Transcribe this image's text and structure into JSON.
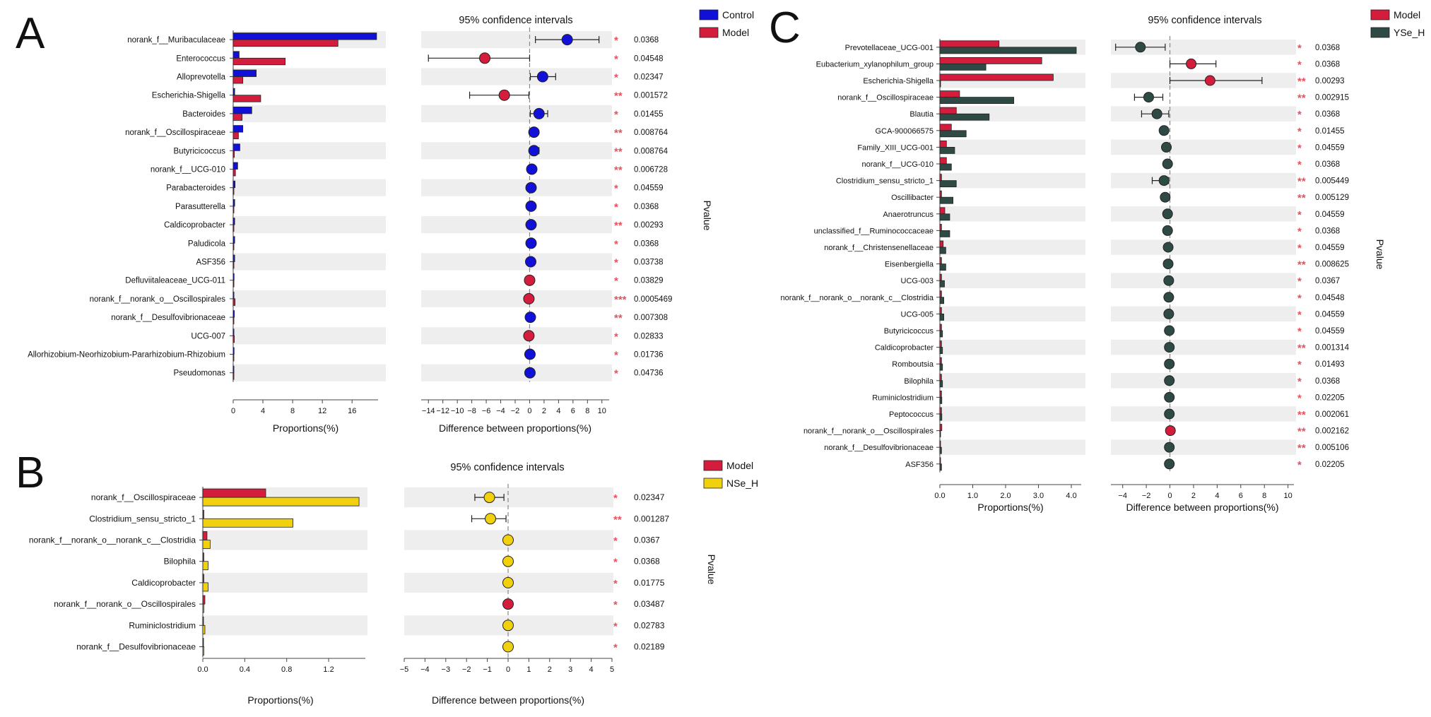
{
  "colors": {
    "control": "#1010d8",
    "model": "#d41c3c",
    "nse_h": "#f1d10e",
    "yse_h": "#2f4a44",
    "star": "#e8505b",
    "stripe": "#eeeeee",
    "bar_edge": "#222222"
  },
  "chart_data": [
    {
      "panel": "A",
      "type": "bar",
      "title": "95% confidence intervals",
      "xlabel_bar": "Proportions(%)",
      "xlabel_ci": "Difference between proportions(%)",
      "ylabel_right": "Pvalue",
      "legend": [
        "Control",
        "Model"
      ],
      "bar_xlim": [
        0,
        19.5
      ],
      "bar_ticks": [
        "0",
        "4",
        "8",
        "12",
        "16"
      ],
      "ci_xlim": [
        -15,
        11
      ],
      "ci_ticks": [
        "−14",
        "−12",
        "−10",
        "−8",
        "−6",
        "−4",
        "−2",
        "0",
        "2",
        "4",
        "6",
        "8",
        "10"
      ],
      "categories": [
        "norank_f__Muribaculaceae",
        "Enterococcus",
        "Alloprevotella",
        "Escherichia-Shigella",
        "Bacteroides",
        "norank_f__Oscillospiraceae",
        "Butyricicoccus",
        "norank_f__UCG-010",
        "Parabacteroides",
        "Parasutterella",
        "Caldicoprobacter",
        "Paludicola",
        "ASF356",
        "Defluviitaleaceae_UCG-011",
        "norank_f__norank_o__Oscillospirales",
        "norank_f__Desulfovibrionaceae",
        "UCG-007",
        "Allorhizobium-Neorhizobium-Pararhizobium-Rhizobium",
        "Pseudomonas"
      ],
      "series": [
        {
          "name": "Control",
          "values": [
            19.3,
            0.8,
            3.1,
            0.2,
            2.5,
            1.3,
            0.9,
            0.6,
            0.25,
            0.2,
            0.2,
            0.2,
            0.2,
            0.12,
            0.1,
            0.15,
            0.1,
            0.12,
            0.1
          ]
        },
        {
          "name": "Model",
          "values": [
            14.1,
            7.0,
            1.3,
            3.7,
            1.2,
            0.7,
            0.15,
            0.3,
            0.05,
            0.05,
            0.05,
            0.05,
            0.05,
            0.1,
            0.25,
            0.05,
            0.15,
            0.05,
            0.05
          ]
        }
      ],
      "diff": [
        5.2,
        -6.2,
        1.8,
        -3.5,
        1.3,
        0.6,
        0.6,
        0.3,
        0.2,
        0.2,
        0.2,
        0.2,
        0.15,
        0.0,
        -0.1,
        0.1,
        -0.1,
        0.05,
        0.05
      ],
      "ci_low": [
        0.8,
        -14.0,
        0.1,
        -8.3,
        0.1,
        0.3,
        0.1,
        0.1,
        0.05,
        0.05,
        0.05,
        0.05,
        0.05,
        -0.1,
        -0.2,
        0.05,
        -0.2,
        0.0,
        0.0
      ],
      "ci_high": [
        9.6,
        0.0,
        3.6,
        -0.1,
        2.5,
        0.9,
        1.3,
        0.5,
        0.35,
        0.35,
        0.35,
        0.35,
        0.25,
        0.1,
        0.0,
        0.15,
        0.0,
        0.1,
        0.1
      ],
      "point_group": [
        "Control",
        "Model",
        "Control",
        "Model",
        "Control",
        "Control",
        "Control",
        "Control",
        "Control",
        "Control",
        "Control",
        "Control",
        "Control",
        "Model",
        "Model",
        "Control",
        "Model",
        "Control",
        "Control"
      ],
      "stars": [
        "*",
        "*",
        "*",
        "**",
        "*",
        "**",
        "**",
        "**",
        "*",
        "*",
        "**",
        "*",
        "*",
        "*",
        "***",
        "**",
        "*",
        "*",
        "*"
      ],
      "pvalues": [
        "0.0368",
        "0.04548",
        "0.02347",
        "0.001572",
        "0.01455",
        "0.008764",
        "0.008764",
        "0.006728",
        "0.04559",
        "0.0368",
        "0.00293",
        "0.0368",
        "0.03738",
        "0.03829",
        "0.0005469",
        "0.007308",
        "0.02833",
        "0.01736",
        "0.04736"
      ]
    },
    {
      "panel": "B",
      "type": "bar",
      "title": "95% confidence intervals",
      "xlabel_bar": "Proportions(%)",
      "xlabel_ci": "Difference between proportions(%)",
      "ylabel_right": "Pvalue",
      "legend": [
        "Model",
        "NSe_H"
      ],
      "bar_xlim": [
        0,
        1.55
      ],
      "bar_ticks": [
        "0.0",
        "0.4",
        "0.8",
        "1.2"
      ],
      "ci_xlim": [
        -5,
        5
      ],
      "ci_ticks": [
        "−5",
        "−4",
        "−3",
        "−2",
        "−1",
        "0",
        "1",
        "2",
        "3",
        "4",
        "5"
      ],
      "categories": [
        "norank_f__Oscillospiraceae",
        "Clostridium_sensu_stricto_1",
        "norank_f__norank_o__norank_c__Clostridia",
        "Bilophila",
        "Caldicoprobacter",
        "norank_f__norank_o__Oscillospirales",
        "Ruminiclostridium",
        "norank_f__Desulfovibrionaceae"
      ],
      "series": [
        {
          "name": "Model",
          "values": [
            0.6,
            0.01,
            0.04,
            0.01,
            0.01,
            0.02,
            0.005,
            0.005
          ]
        },
        {
          "name": "NSe_H",
          "values": [
            1.49,
            0.86,
            0.07,
            0.05,
            0.05,
            0.01,
            0.02,
            0.01
          ]
        }
      ],
      "diff": [
        -0.9,
        -0.85,
        0.0,
        0.0,
        0.0,
        0.0,
        0.0,
        0.0
      ],
      "ci_low": [
        -1.6,
        -1.75,
        -0.1,
        -0.1,
        -0.1,
        -0.1,
        -0.1,
        -0.1
      ],
      "ci_high": [
        -0.2,
        -0.1,
        0.1,
        0.1,
        0.1,
        0.1,
        0.1,
        0.1
      ],
      "point_group": [
        "NSe_H",
        "NSe_H",
        "NSe_H",
        "NSe_H",
        "NSe_H",
        "Model",
        "NSe_H",
        "NSe_H"
      ],
      "stars": [
        "*",
        "**",
        "*",
        "*",
        "*",
        "*",
        "*",
        "*"
      ],
      "pvalues": [
        "0.02347",
        "0.001287",
        "0.0367",
        "0.0368",
        "0.01775",
        "0.03487",
        "0.02783",
        "0.02189"
      ]
    },
    {
      "panel": "C",
      "type": "bar",
      "title": "95% confidence intervals",
      "xlabel_bar": "Proportions(%)",
      "xlabel_ci": "Difference between proportions(%)",
      "ylabel_right": "Pvalue",
      "legend": [
        "Model",
        "YSe_H"
      ],
      "bar_xlim": [
        0,
        4.3
      ],
      "bar_ticks": [
        "0.0",
        "1.0",
        "2.0",
        "3.0",
        "4.0"
      ],
      "ci_xlim": [
        -5,
        10.5
      ],
      "ci_ticks": [
        "−4",
        "−2",
        "0",
        "2",
        "4",
        "6",
        "8",
        "10"
      ],
      "categories": [
        "Prevotellaceae_UCG-001",
        "Eubacterium_xylanophilum_group",
        "Escherichia-Shigella",
        "norank_f__Oscillospiraceae",
        "Blautia",
        "GCA-900066575",
        "Family_XIII_UCG-001",
        "norank_f__UCG-010",
        "Clostridium_sensu_stricto_1",
        "Oscillibacter",
        "Anaerotruncus",
        "unclassified_f__Ruminococcaceae",
        "norank_f__Christensenellaceae",
        "Eisenbergiella",
        "UCG-003",
        "norank_f__norank_o__norank_c__Clostridia",
        "UCG-005",
        "Butyricicoccus",
        "Caldicoprobacter",
        "Romboutsia",
        "Bilophila",
        "Ruminiclostridium",
        "Peptococcus",
        "norank_f__norank_o__Oscillospirales",
        "norank_f__Desulfovibrionaceae",
        "ASF356"
      ],
      "series": [
        {
          "name": "Model",
          "values": [
            1.8,
            3.1,
            3.45,
            0.6,
            0.5,
            0.35,
            0.2,
            0.2,
            0.05,
            0.05,
            0.15,
            0.05,
            0.1,
            0.05,
            0.05,
            0.05,
            0.05,
            0.05,
            0.05,
            0.05,
            0.05,
            0.05,
            0.05,
            0.06,
            0.02,
            0.02
          ]
        },
        {
          "name": "YSe_H",
          "values": [
            4.15,
            1.4,
            0.0,
            2.25,
            1.5,
            0.8,
            0.45,
            0.35,
            0.5,
            0.4,
            0.3,
            0.3,
            0.18,
            0.18,
            0.14,
            0.12,
            0.12,
            0.08,
            0.08,
            0.08,
            0.08,
            0.06,
            0.06,
            0.02,
            0.05,
            0.05
          ]
        }
      ],
      "diff": [
        -2.5,
        1.8,
        3.4,
        -1.8,
        -1.1,
        -0.5,
        -0.3,
        -0.2,
        -0.5,
        -0.4,
        -0.2,
        -0.2,
        -0.15,
        -0.15,
        -0.1,
        -0.1,
        -0.1,
        -0.05,
        -0.05,
        -0.05,
        -0.05,
        -0.05,
        -0.05,
        0.04,
        -0.05,
        -0.05
      ],
      "ci_low": [
        -4.6,
        0.0,
        0.0,
        -3.0,
        -2.4,
        -0.8,
        -0.5,
        -0.35,
        -1.5,
        -0.7,
        -0.35,
        -0.35,
        -0.25,
        -0.25,
        -0.2,
        -0.2,
        -0.2,
        -0.1,
        -0.1,
        -0.1,
        -0.1,
        -0.1,
        -0.1,
        0.0,
        -0.1,
        -0.1
      ],
      "ci_high": [
        -0.4,
        3.9,
        7.8,
        -0.6,
        -0.1,
        -0.2,
        -0.1,
        -0.05,
        -0.1,
        -0.1,
        -0.05,
        -0.05,
        -0.05,
        -0.05,
        0.0,
        0.0,
        0.0,
        0.0,
        0.0,
        0.0,
        0.0,
        0.0,
        0.0,
        0.08,
        0.0,
        0.0
      ],
      "point_group": [
        "YSe_H",
        "Model",
        "Model",
        "YSe_H",
        "YSe_H",
        "YSe_H",
        "YSe_H",
        "YSe_H",
        "YSe_H",
        "YSe_H",
        "YSe_H",
        "YSe_H",
        "YSe_H",
        "YSe_H",
        "YSe_H",
        "YSe_H",
        "YSe_H",
        "YSe_H",
        "YSe_H",
        "YSe_H",
        "YSe_H",
        "YSe_H",
        "YSe_H",
        "Model",
        "YSe_H",
        "YSe_H"
      ],
      "stars": [
        "*",
        "*",
        "**",
        "**",
        "*",
        "*",
        "*",
        "*",
        "**",
        "**",
        "*",
        "*",
        "*",
        "**",
        "*",
        "*",
        "*",
        "*",
        "**",
        "*",
        "*",
        "*",
        "**",
        "**",
        "**",
        "*"
      ],
      "pvalues": [
        "0.0368",
        "0.0368",
        "0.00293",
        "0.002915",
        "0.0368",
        "0.01455",
        "0.04559",
        "0.0368",
        "0.005449",
        "0.005129",
        "0.04559",
        "0.0368",
        "0.04559",
        "0.008625",
        "0.0367",
        "0.04548",
        "0.04559",
        "0.04559",
        "0.001314",
        "0.01493",
        "0.0368",
        "0.02205",
        "0.002061",
        "0.002162",
        "0.005106",
        "0.02205"
      ]
    }
  ]
}
